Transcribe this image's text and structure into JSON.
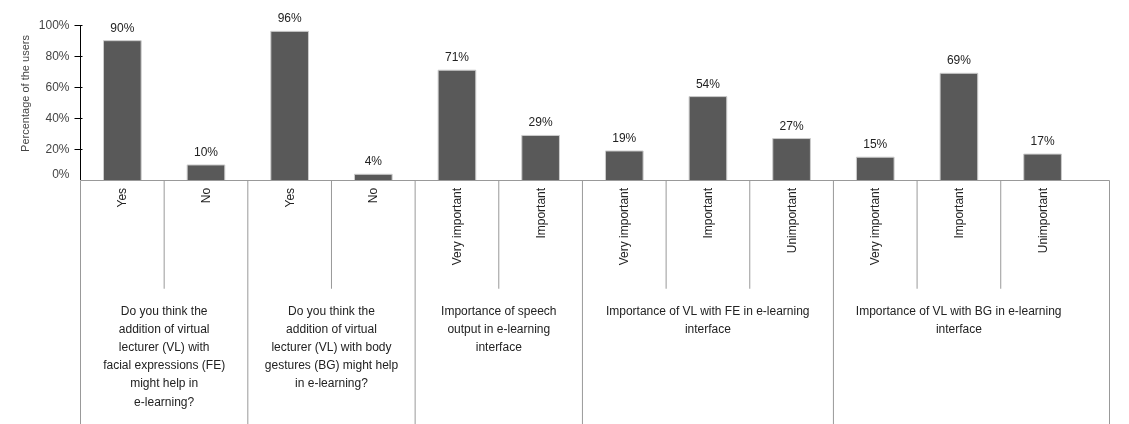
{
  "chart_data": {
    "type": "bar",
    "ylabel": "Percentage of the users",
    "categories": [
      "Yes",
      "No",
      "Yes",
      "No",
      "Very important",
      "Important",
      "Very important",
      "Important",
      "Unimportant",
      "Very important",
      "Important",
      "Unimportant"
    ],
    "values": [
      90,
      10,
      96,
      4,
      71,
      29,
      19,
      54,
      27,
      15,
      69,
      17
    ],
    "value_labels": [
      "90%",
      "10%",
      "96%",
      "4%",
      "71%",
      "29%",
      "19%",
      "54%",
      "27%",
      "15%",
      "69%",
      "17%"
    ],
    "color": "#595959",
    "ylim": [
      0,
      100
    ],
    "yticks": [
      {
        "value": 0,
        "label": "0%"
      },
      {
        "value": 20,
        "label": "20%"
      },
      {
        "value": 40,
        "label": "40%"
      },
      {
        "value": 60,
        "label": "60%"
      },
      {
        "value": 80,
        "label": "80%"
      },
      {
        "value": 100,
        "label": "100%"
      }
    ],
    "grid": false,
    "annotations": [
      "Do you think the addition of virtual lecturer (VL) with facial expressions (FE) might help in e-learning?",
      "Do you think the addition of virtual lecturer (VL) with body gestures (BG) might help in e-learning?",
      "Importance of speech output in e-learning interface",
      "Importance of VL with FE in e-learning interface",
      "Importance of VL with BG in e-learning interface"
    ]
  }
}
